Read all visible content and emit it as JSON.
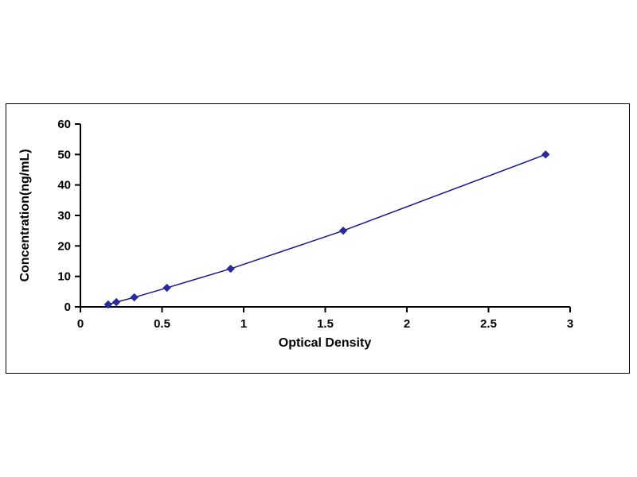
{
  "chart_data": {
    "type": "line",
    "title": "",
    "xlabel": "Optical Density",
    "ylabel": "Concentration(ng/mL)",
    "x": [
      0.17,
      0.22,
      0.33,
      0.53,
      0.92,
      1.61,
      2.85
    ],
    "y": [
      0.78,
      1.56,
      3.12,
      6.25,
      12.5,
      25,
      50
    ],
    "xlim": [
      0,
      3
    ],
    "ylim": [
      0,
      60
    ],
    "xticks": [
      0,
      0.5,
      1,
      1.5,
      2,
      2.5,
      3
    ],
    "xtick_labels": [
      "0",
      "0.5",
      "1",
      "1.5",
      "2",
      "2.5",
      "3"
    ],
    "yticks": [
      0,
      10,
      20,
      30,
      40,
      50,
      60
    ],
    "ytick_labels": [
      "0",
      "10",
      "20",
      "30",
      "40",
      "50",
      "60"
    ],
    "grid": false,
    "legend": null,
    "marker": "diamond",
    "colors": {
      "line": "#16168c",
      "marker": "#2a2a9c",
      "axis": "#000000",
      "frame": "#000000",
      "background": "#ffffff"
    }
  }
}
